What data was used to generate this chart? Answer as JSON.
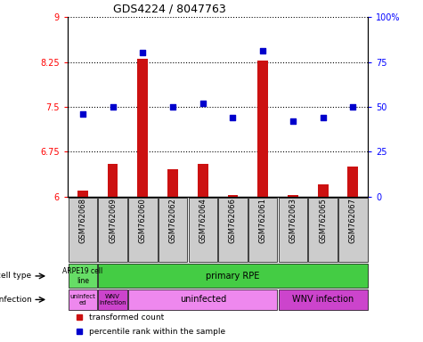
{
  "title": "GDS4224 / 8047763",
  "samples": [
    "GSM762068",
    "GSM762069",
    "GSM762060",
    "GSM762062",
    "GSM762064",
    "GSM762066",
    "GSM762061",
    "GSM762063",
    "GSM762065",
    "GSM762067"
  ],
  "transformed_count": [
    6.1,
    6.55,
    8.3,
    6.45,
    6.55,
    6.02,
    8.28,
    6.02,
    6.2,
    6.5
  ],
  "percentile_rank": [
    46,
    50,
    80,
    50,
    52,
    44,
    81,
    42,
    44,
    50
  ],
  "ylim_left": [
    6,
    9
  ],
  "ylim_right": [
    0,
    100
  ],
  "yticks_left": [
    6,
    6.75,
    7.5,
    8.25,
    9
  ],
  "yticks_right": [
    0,
    25,
    50,
    75,
    100
  ],
  "ytick_labels_left": [
    "6",
    "6.75",
    "7.5",
    "8.25",
    "9"
  ],
  "ytick_labels_right": [
    "0",
    "25",
    "50",
    "75",
    "100%"
  ],
  "bar_color": "#cc1111",
  "dot_color": "#0000cc",
  "tick_bg_color": "#cccccc",
  "cell_type_green_light": "#66dd66",
  "cell_type_green_dark": "#44cc44",
  "infection_pink_light": "#ee88ee",
  "infection_pink_dark": "#cc44cc",
  "legend_red": "transformed count",
  "legend_blue": "percentile rank within the sample",
  "figsize": [
    4.75,
    3.84
  ],
  "dpi": 100
}
